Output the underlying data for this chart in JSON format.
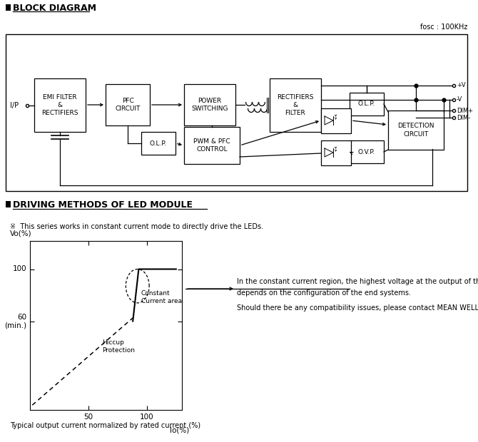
{
  "title_block": "BLOCK DIAGRAM",
  "title_driving": "DRIVING METHODS OF LED MODULE",
  "fosc_label": "fosc : 100KHz",
  "series_note": "※  This series works in constant current mode to directly drive the LEDs.",
  "output_note_line1": "In the constant current region, the highest voltage at the output of the driver",
  "output_note_line2": "depends on the configuration of the end systems.",
  "output_note_line3": "Should there be any compatibility issues, please contact MEAN WELL.",
  "xlabel": "Io(%)",
  "ylabel": "Vo(%)",
  "constant_current_label": "Constant\nCurrent area",
  "hiccup_label": "Hiccup\nProtection",
  "xaxis_note": "Typical output current normalized by rated current (%)",
  "bg_color": "#ffffff"
}
